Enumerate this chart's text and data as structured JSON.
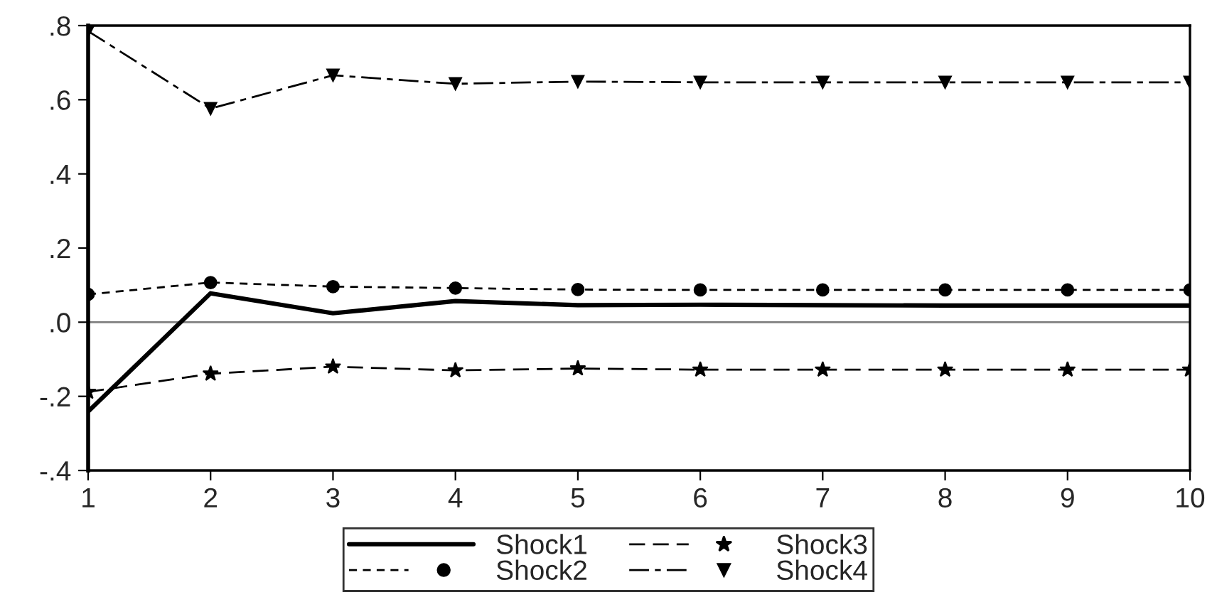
{
  "chart_data": {
    "type": "line",
    "x": [
      1,
      2,
      3,
      4,
      5,
      6,
      7,
      8,
      9,
      10
    ],
    "series": [
      {
        "name": "Shock1",
        "color": "#000000",
        "line_style": "solid",
        "marker": "none",
        "values": [
          -0.241,
          0.078,
          0.024,
          0.057,
          0.046,
          0.047,
          0.046,
          0.045,
          0.045,
          0.045
        ]
      },
      {
        "name": "Shock2",
        "color": "#000000",
        "line_style": "dashed",
        "marker": "circle",
        "values": [
          0.075,
          0.107,
          0.096,
          0.092,
          0.088,
          0.087,
          0.087,
          0.087,
          0.087,
          0.087
        ]
      },
      {
        "name": "Shock3",
        "color": "#000000",
        "line_style": "dashed",
        "marker": "star",
        "values": [
          -0.188,
          -0.139,
          -0.12,
          -0.13,
          -0.125,
          -0.128,
          -0.128,
          -0.128,
          -0.128,
          -0.128
        ]
      },
      {
        "name": "Shock4",
        "color": "#000000",
        "line_style": "dashed",
        "marker": "triangle",
        "values": [
          0.785,
          0.576,
          0.666,
          0.643,
          0.649,
          0.647,
          0.647,
          0.647,
          0.647,
          0.647
        ]
      }
    ],
    "xlim": [
      1,
      10
    ],
    "xticks": [
      1,
      2,
      3,
      4,
      5,
      6,
      7,
      8,
      9,
      10
    ],
    "ylim": [
      -0.4,
      0.8
    ],
    "yticks": [
      {
        "value": -0.4,
        "label": "-.4"
      },
      {
        "value": -0.2,
        "label": "-.2"
      },
      {
        "value": 0,
        "label": ".0"
      },
      {
        "value": 0.2,
        "label": ".2"
      },
      {
        "value": 0.4,
        "label": ".4"
      },
      {
        "value": 0.6,
        "label": ".6"
      },
      {
        "value": 0.8,
        "label": ".8"
      }
    ],
    "ref_lines": [
      {
        "axis": "y",
        "value": 0,
        "color": "#808080",
        "line_style": "solid"
      }
    ],
    "grid": false,
    "legend": "bottom"
  }
}
